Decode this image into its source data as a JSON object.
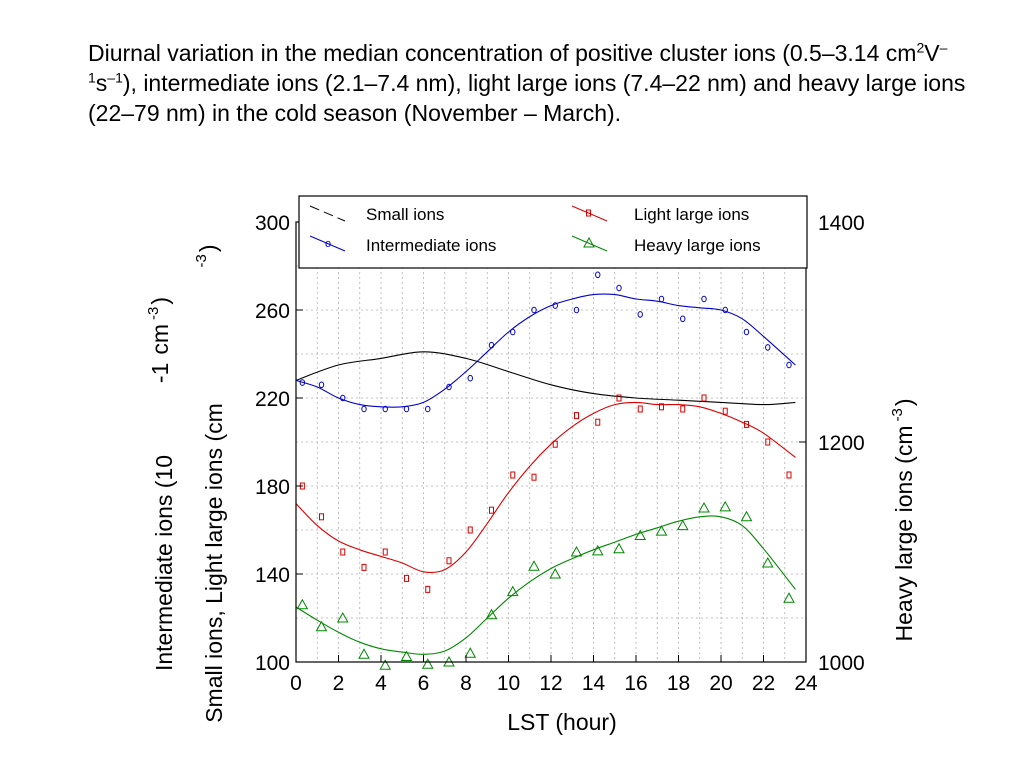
{
  "caption": {
    "p1": "Diurnal variation in the median concentration of positive cluster ions (0.5–3.14 cm",
    "sup1": "2",
    "p2": "V",
    "sup2": "–1",
    "p3": "s",
    "sup3": "–1",
    "p4": "), intermediate ions (2.1–7.4 nm), light large ions (7.4–22 nm) and heavy large ions (22–79 nm) in the cold season (November – March)."
  },
  "colors": {
    "small": "#000000",
    "intermediate": "#0000cc",
    "light": "#dd0000",
    "heavy": "#008800",
    "grid": "#b0b0b0"
  },
  "chart_data": {
    "type": "line",
    "xlabel": "LST (hour)",
    "ylabel_left_line1": "Intermediate ions (10",
    "ylabel_left_line2": "Small ions, Light large ions (cm",
    "ylabel_left_sup": "-1",
    "ylabel_left_cm": "cm",
    "ylabel_left_exp": "-3",
    "ylabel_left_close": ")",
    "ylabel_left_exp2": "-3",
    "ylabel_left_close2": ")",
    "ylabel_right": "Heavy large ions (cm",
    "ylabel_right_exp": "-3",
    "ylabel_right_close": ")",
    "xlim": [
      0,
      24
    ],
    "xticks": [
      "0",
      "2",
      "4",
      "6",
      "8",
      "10",
      "12",
      "14",
      "16",
      "18",
      "20",
      "22",
      "24"
    ],
    "ylim_left": [
      100,
      300
    ],
    "yticks_left": [
      "100",
      "140",
      "180",
      "220",
      "260",
      "300"
    ],
    "ylim_right": [
      1000,
      1400
    ],
    "yticks_right": [
      "1000",
      "1200",
      "1400"
    ],
    "grid": true,
    "legend_position": "top",
    "series": [
      {
        "name": "Small ions",
        "axis": "left",
        "marker": "none",
        "style": "line",
        "curve_x": [
          0,
          2,
          4,
          6,
          8,
          10,
          12,
          14,
          16,
          18,
          20,
          22,
          23.5
        ],
        "curve_y": [
          228,
          235,
          238,
          241,
          238,
          232,
          226,
          222,
          220,
          219,
          218,
          217,
          218
        ]
      },
      {
        "name": "Intermediate ions",
        "axis": "left",
        "marker": "circle",
        "style": "line",
        "points_x": [
          0.3,
          1.2,
          2.2,
          3.2,
          4.2,
          5.2,
          6.2,
          7.2,
          8.2,
          9.2,
          10.2,
          11.2,
          12.2,
          13.2,
          14.2,
          15.2,
          16.2,
          17.2,
          18.2,
          19.2,
          20.2,
          21.2,
          22.2,
          23.2
        ],
        "points_y": [
          227,
          226,
          220,
          215,
          215,
          215,
          215,
          225,
          229,
          244,
          250,
          260,
          262,
          260,
          276,
          270,
          258,
          265,
          256,
          265,
          260,
          250,
          243,
          235
        ],
        "curve_x": [
          0,
          1,
          2,
          3,
          4,
          5,
          6,
          7,
          8,
          9,
          10,
          11,
          12,
          13,
          14,
          15,
          16,
          17,
          18,
          19,
          20,
          21,
          22,
          23.5
        ],
        "curve_y": [
          228,
          225,
          220,
          217,
          216,
          216,
          218,
          224,
          232,
          241,
          250,
          257,
          262,
          265,
          267,
          267,
          265,
          264,
          262,
          261,
          260,
          256,
          248,
          235
        ]
      },
      {
        "name": "Light large ions",
        "axis": "left",
        "marker": "square",
        "style": "line",
        "points_x": [
          0.3,
          1.2,
          2.2,
          3.2,
          4.2,
          5.2,
          6.2,
          7.2,
          8.2,
          9.2,
          10.2,
          11.2,
          12.2,
          13.2,
          14.2,
          15.2,
          16.2,
          17.2,
          18.2,
          19.2,
          20.2,
          21.2,
          22.2,
          23.2
        ],
        "points_y": [
          180,
          166,
          150,
          143,
          150,
          138,
          133,
          146,
          160,
          169,
          185,
          184,
          199,
          212,
          209,
          220,
          215,
          216,
          215,
          220,
          214,
          208,
          200,
          185
        ],
        "curve_x": [
          0,
          1,
          2,
          3,
          4,
          5,
          6,
          7,
          8,
          9,
          10,
          11,
          12,
          13,
          14,
          15,
          16,
          17,
          18,
          19,
          20,
          21,
          22,
          23.5
        ],
        "curve_y": [
          172,
          162,
          155,
          151,
          148,
          145,
          141,
          142,
          150,
          163,
          177,
          189,
          199,
          207,
          213,
          217,
          218,
          217,
          217,
          216,
          213,
          209,
          204,
          193
        ]
      },
      {
        "name": "Heavy large ions",
        "axis": "right",
        "marker": "triangle",
        "style": "line",
        "points_x": [
          0.3,
          1.2,
          2.2,
          3.2,
          4.2,
          5.2,
          6.2,
          7.2,
          8.2,
          9.2,
          10.2,
          11.2,
          12.2,
          13.2,
          14.2,
          15.2,
          16.2,
          17.2,
          18.2,
          19.2,
          20.2,
          21.2,
          22.2,
          23.2
        ],
        "points_y": [
          1052,
          1032,
          1040,
          1007,
          997,
          1005,
          998,
          1000,
          1008,
          1043,
          1064,
          1087,
          1080,
          1100,
          1101,
          1103,
          1115,
          1119,
          1124,
          1140,
          1141,
          1132,
          1090,
          1058
        ],
        "curve_x": [
          0,
          1,
          2,
          3,
          4,
          5,
          6,
          7,
          8,
          9,
          10,
          11,
          12,
          13,
          14,
          15,
          16,
          17,
          18,
          19,
          20,
          21,
          22,
          23.5
        ],
        "curve_y": [
          1050,
          1038,
          1027,
          1018,
          1012,
          1009,
          1007,
          1010,
          1022,
          1040,
          1058,
          1073,
          1085,
          1094,
          1102,
          1109,
          1116,
          1122,
          1128,
          1132,
          1132,
          1124,
          1103,
          1066
        ]
      }
    ]
  }
}
